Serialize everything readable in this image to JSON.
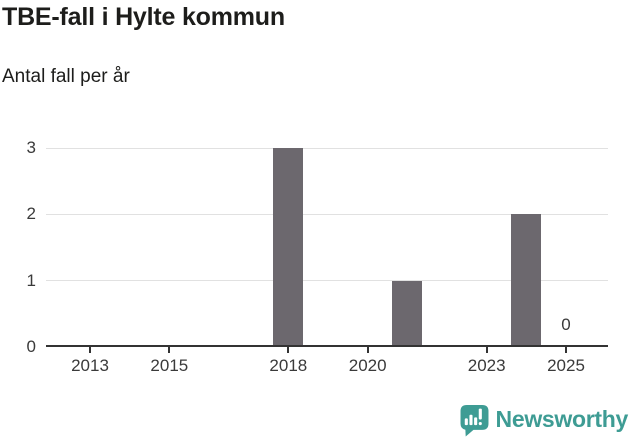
{
  "header": {
    "title": "TBE-fall i Hylte kommun",
    "subtitle": "Antal fall per år"
  },
  "chart_data": {
    "type": "bar",
    "title": "TBE-fall i Hylte kommun",
    "subtitle": "Antal fall per år",
    "xlabel": "",
    "ylabel": "",
    "bars": [
      {
        "year": 2018,
        "value": 3
      },
      {
        "year": 2021,
        "value": 1
      },
      {
        "year": 2024,
        "value": 2
      },
      {
        "year": 2025,
        "value": 0
      }
    ],
    "value_labels": [
      {
        "year": 2025,
        "text": "0"
      }
    ],
    "x_ticks": [
      2013,
      2015,
      2018,
      2020,
      2023,
      2025
    ],
    "y_ticks": [
      0,
      1,
      2,
      3
    ],
    "ylim": [
      0,
      3
    ],
    "x_domain": [
      2011.9,
      2026.1
    ],
    "grid": "horizontal-only",
    "legend": "none"
  },
  "footer": {
    "brand": "Newsworthy"
  },
  "colors": {
    "bar": "#6c686e",
    "axis": "#333333",
    "grid": "#e1e1e1",
    "title_text": "#1d1d1b",
    "tick_text": "#3a3a3a",
    "brand_teal": "#3e9c94"
  }
}
